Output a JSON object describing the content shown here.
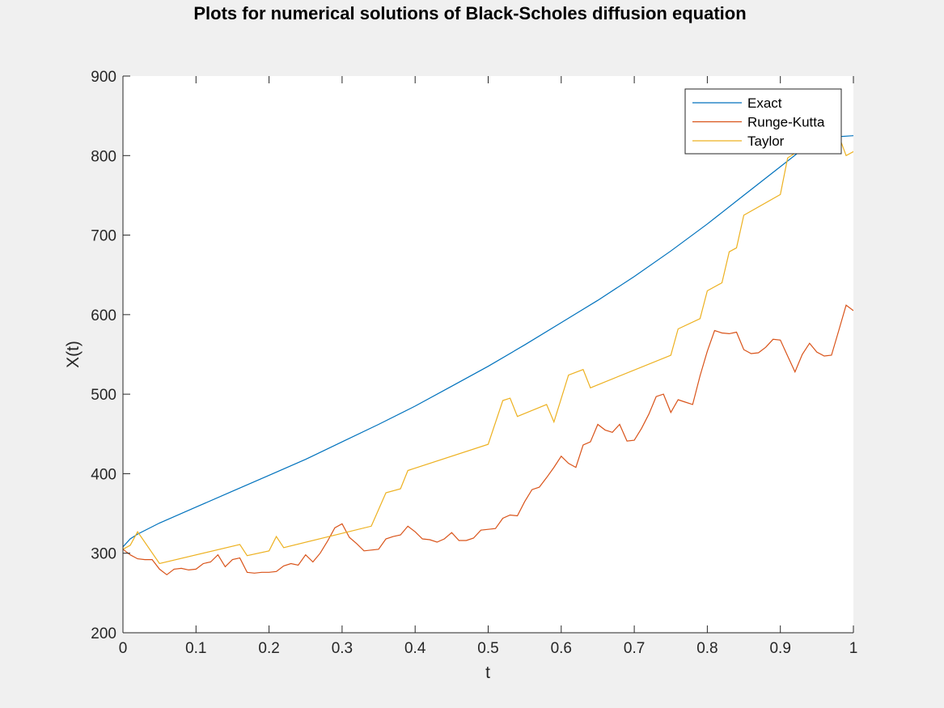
{
  "chart_data": {
    "type": "line",
    "title": "Plots for numerical solutions of Black-Scholes diffusion equation",
    "xlabel": "t",
    "ylabel": "X(t)",
    "xlim": [
      0,
      1
    ],
    "ylim": [
      200,
      900
    ],
    "xticks": [
      "0",
      "0.1",
      "0.2",
      "0.3",
      "0.4",
      "0.5",
      "0.6",
      "0.7",
      "0.8",
      "0.9",
      "1"
    ],
    "yticks": [
      "200",
      "300",
      "400",
      "500",
      "600",
      "700",
      "800",
      "900"
    ],
    "grid": false,
    "legend_position": "top-right",
    "series": [
      {
        "name": "Exact",
        "color": "#0072bd",
        "x": [
          0,
          0.01,
          0.02,
          0.05,
          0.1,
          0.15,
          0.2,
          0.25,
          0.3,
          0.35,
          0.4,
          0.45,
          0.5,
          0.55,
          0.6,
          0.65,
          0.7,
          0.75,
          0.8,
          0.85,
          0.9,
          0.95,
          1
        ],
        "y": [
          308,
          318,
          324,
          338,
          358,
          378,
          398,
          418,
          440,
          462,
          485,
          510,
          535,
          562,
          590,
          618,
          648,
          680,
          714,
          750,
          786,
          822,
          825
        ]
      },
      {
        "name": "Runge-Kutta",
        "color": "#d95319",
        "x": [
          0,
          0.01,
          0.02,
          0.03,
          0.04,
          0.05,
          0.06,
          0.07,
          0.08,
          0.09,
          0.1,
          0.11,
          0.12,
          0.13,
          0.14,
          0.15,
          0.16,
          0.17,
          0.18,
          0.19,
          0.2,
          0.21,
          0.22,
          0.23,
          0.24,
          0.25,
          0.26,
          0.27,
          0.28,
          0.29,
          0.3,
          0.31,
          0.32,
          0.33,
          0.34,
          0.35,
          0.36,
          0.37,
          0.38,
          0.39,
          0.4,
          0.41,
          0.42,
          0.43,
          0.44,
          0.45,
          0.46,
          0.47,
          0.48,
          0.49,
          0.5,
          0.51,
          0.52,
          0.53,
          0.54,
          0.55,
          0.56,
          0.57,
          0.58,
          0.59,
          0.6,
          0.61,
          0.62,
          0.63,
          0.64,
          0.65,
          0.66,
          0.67,
          0.68,
          0.69,
          0.7,
          0.71,
          0.72,
          0.73,
          0.74,
          0.75,
          0.76,
          0.77,
          0.78,
          0.79,
          0.8,
          0.81,
          0.82,
          0.83,
          0.84,
          0.85,
          0.86,
          0.87,
          0.88,
          0.89,
          0.9,
          0.91,
          0.92,
          0.93,
          0.94,
          0.95,
          0.96,
          0.97,
          0.98,
          0.99,
          1
        ],
        "y": [
          305,
          298,
          293,
          292,
          292,
          280,
          273,
          280,
          281,
          279,
          280,
          287,
          289,
          298,
          283,
          292,
          294,
          276,
          275,
          276,
          276,
          277,
          284,
          287,
          285,
          298,
          289,
          300,
          315,
          332,
          337,
          320,
          312,
          303,
          304,
          305,
          318,
          321,
          323,
          334,
          327,
          318,
          317,
          314,
          318,
          326,
          316,
          316,
          319,
          329,
          330,
          331,
          344,
          348,
          347,
          365,
          380,
          383,
          395,
          408,
          422,
          413,
          408,
          436,
          440,
          462,
          455,
          452,
          462,
          441,
          442,
          457,
          475,
          497,
          500,
          477,
          493,
          490,
          487,
          523,
          554,
          580,
          577,
          576,
          578,
          556,
          551,
          552,
          559,
          569,
          568,
          548,
          528,
          550,
          564,
          553,
          548,
          549,
          580,
          612,
          605
        ]
      },
      {
        "name": "Taylor",
        "color": "#edb120",
        "x": [
          0,
          0.01,
          0.02,
          0.05,
          0.16,
          0.17,
          0.2,
          0.21,
          0.22,
          0.34,
          0.36,
          0.38,
          0.39,
          0.5,
          0.52,
          0.53,
          0.54,
          0.58,
          0.59,
          0.61,
          0.63,
          0.64,
          0.75,
          0.76,
          0.79,
          0.8,
          0.82,
          0.83,
          0.84,
          0.85,
          0.9,
          0.91,
          0.92,
          0.97,
          0.98,
          0.99,
          1
        ],
        "y": [
          305,
          310,
          327,
          287,
          311,
          297,
          303,
          321,
          307,
          334,
          376,
          381,
          404,
          437,
          492,
          495,
          472,
          487,
          465,
          524,
          531,
          508,
          549,
          582,
          595,
          630,
          640,
          679,
          684,
          725,
          751,
          797,
          803,
          816,
          825,
          800,
          805
        ]
      }
    ]
  }
}
